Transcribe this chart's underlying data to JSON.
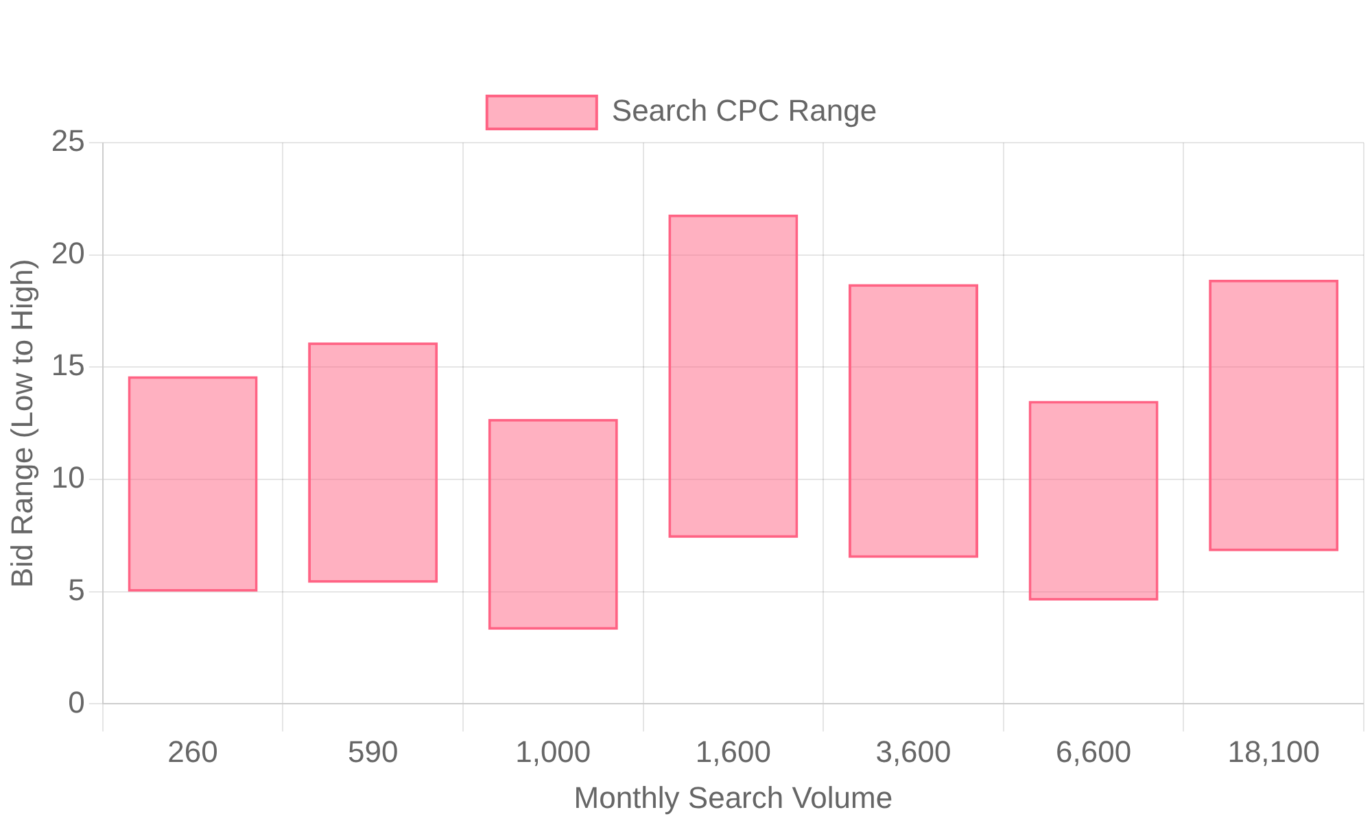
{
  "chart_data": {
    "type": "bar",
    "xlabel": "Monthly Search Volume",
    "ylabel": "Bid Range (Low to High)",
    "categories": [
      "260",
      "590",
      "1,000",
      "1,600",
      "3,600",
      "6,600",
      "18,100"
    ],
    "series": [
      {
        "name": "Search CPC Range",
        "color": "#ff6384",
        "base": [
          5.0,
          5.4,
          3.3,
          7.4,
          6.5,
          4.6,
          6.8
        ],
        "values": [
          9.6,
          10.7,
          9.4,
          14.4,
          12.2,
          8.9,
          12.1
        ]
      }
    ],
    "ylim": [
      0,
      25
    ],
    "yticks": [
      0,
      5,
      10,
      15,
      20,
      25
    ],
    "grid": true,
    "legend": "top"
  }
}
